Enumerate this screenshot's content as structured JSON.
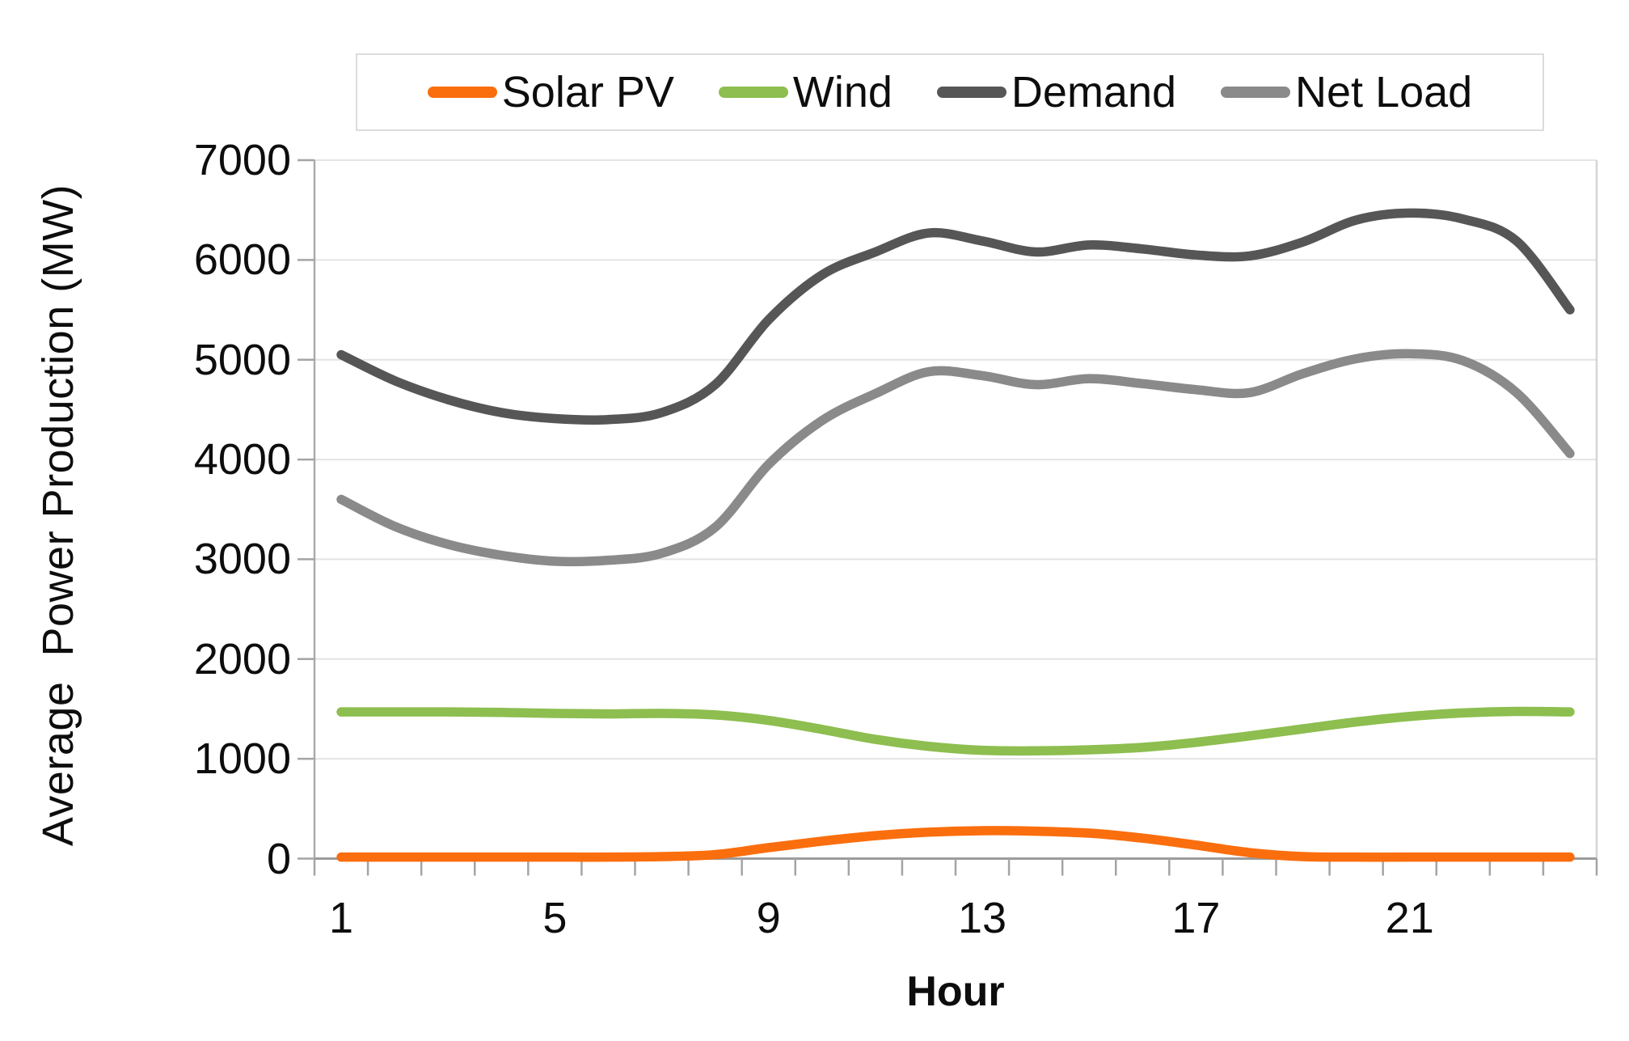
{
  "chart_data": {
    "type": "line",
    "title": "",
    "xlabel": "Hour",
    "ylabel": "Average  Power Production (MW)",
    "x": [
      1,
      2,
      3,
      4,
      5,
      6,
      7,
      8,
      9,
      10,
      11,
      12,
      13,
      14,
      15,
      16,
      17,
      18,
      19,
      20,
      21,
      22,
      23,
      24
    ],
    "x_ticks_labeled": [
      1,
      5,
      9,
      13,
      17,
      21
    ],
    "ylim": [
      0,
      7000
    ],
    "y_tick_step": 1000,
    "grid": true,
    "legend_position": "top",
    "line_smoothing": true,
    "series": [
      {
        "name": "Solar PV",
        "color": "#FA6E0E",
        "values": [
          15,
          15,
          15,
          15,
          15,
          15,
          20,
          40,
          110,
          175,
          230,
          265,
          280,
          275,
          255,
          205,
          135,
          60,
          20,
          15,
          15,
          15,
          15,
          15
        ]
      },
      {
        "name": "Wind",
        "color": "#8DBE4F",
        "values": [
          1470,
          1470,
          1470,
          1465,
          1455,
          1450,
          1455,
          1440,
          1385,
          1295,
          1195,
          1125,
          1085,
          1080,
          1090,
          1115,
          1165,
          1230,
          1300,
          1370,
          1425,
          1460,
          1475,
          1470
        ]
      },
      {
        "name": "Demand",
        "color": "#565656",
        "values": [
          5050,
          4790,
          4600,
          4470,
          4410,
          4400,
          4470,
          4750,
          5400,
          5850,
          6080,
          6270,
          6190,
          6080,
          6150,
          6110,
          6050,
          6040,
          6180,
          6400,
          6470,
          6410,
          6190,
          5500
        ]
      },
      {
        "name": "Net Load",
        "color": "#8A8A8A",
        "values": [
          3600,
          3330,
          3150,
          3040,
          2980,
          2990,
          3060,
          3320,
          3950,
          4390,
          4660,
          4880,
          4840,
          4750,
          4810,
          4760,
          4700,
          4670,
          4860,
          5010,
          5060,
          4990,
          4670,
          4060
        ]
      }
    ]
  },
  "palette": {
    "background": "#FFFFFF",
    "gridline": "#E4E4E4",
    "plot_border": "#D6D6D6",
    "y_axis": "#ABABAB",
    "x_axis": "#9B9B9B",
    "tick_mark": "#A4A4A4",
    "text": "#0D0D0D",
    "legend_border": "#DCDCDC"
  }
}
